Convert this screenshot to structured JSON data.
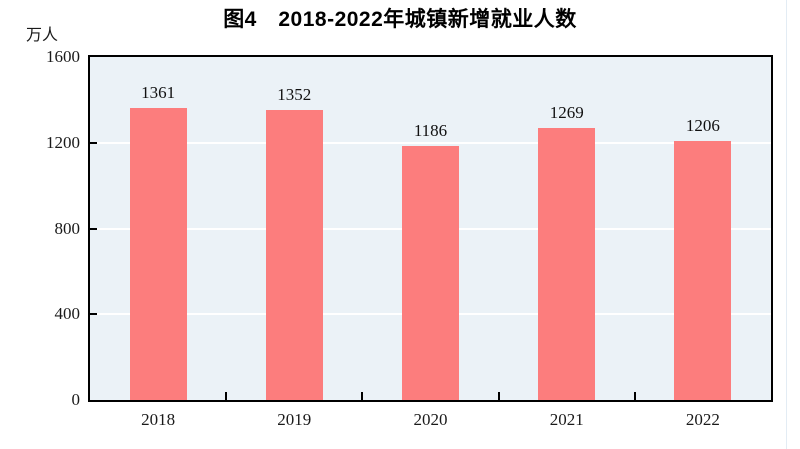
{
  "figure": {
    "title": "图4　2018-2022年城镇新增就业人数",
    "y_unit_label": "万人"
  },
  "chart_data": {
    "type": "bar",
    "title": "图4　2018-2022年城镇新增就业人数",
    "categories": [
      "2018",
      "2019",
      "2020",
      "2021",
      "2022"
    ],
    "values": [
      1361,
      1352,
      1186,
      1269,
      1206
    ],
    "xlabel": "",
    "ylabel": "万人",
    "ylim": [
      0,
      1600
    ],
    "yticks": [
      0,
      400,
      800,
      1200,
      1600
    ],
    "grid": true,
    "legend": false,
    "value_labels_shown": true,
    "colors": {
      "bar": "#FC7D7D",
      "plot_background": "#EBF2F7",
      "gridline": "#FFFFFF",
      "axis_border": "#000000",
      "text": "#1a1a1a"
    }
  }
}
